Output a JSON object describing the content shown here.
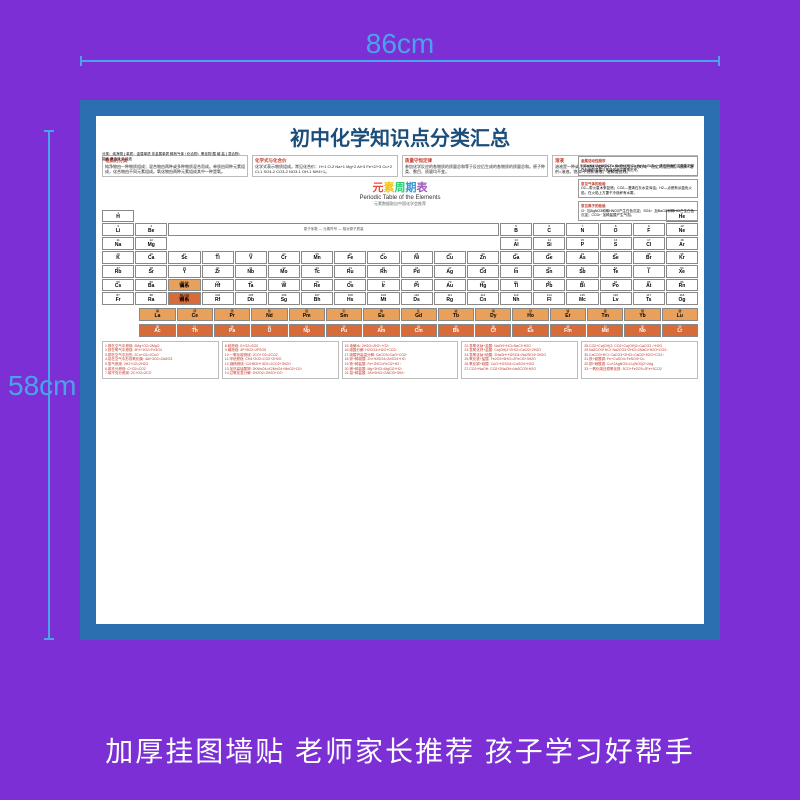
{
  "background_color": "#7b2fd4",
  "poster_border_color": "#2b6fb0",
  "dim_color": "#4aa3e8",
  "dims": {
    "width_label": "86cm",
    "height_label": "58cm"
  },
  "poster_title": "初中化学知识点分类汇总",
  "left_branch": "分类：纯净物 { 单质：金属单质 非金属单质 稀有气体 / 化合物：氧化物 酸 碱 盐 } 混合物：溶液 悬浊液 乳浊液",
  "info_cols": [
    {
      "t": "物质的分类",
      "b": "纯净物由一种物质组成；混合物由两种或多种物质混合而成。单质由同种元素组成，化合物由不同元素组成。氧化物由两种元素组成其中一种是氧。"
    },
    {
      "t": "化学式与化合价",
      "b": "化学式表示物质组成。常见化合价：H+1 O-2 Na+1 Mg+2 Al+3 Fe+2/+3 Cu+2 Cl-1 SO4-2 CO3-2 NO3-1 OH-1 NH4+1。"
    },
    {
      "t": "质量守恒定律",
      "b": "参加化学反应的各物质的质量总和等于反应后生成的各物质的质量总和。原子种类、数目、质量均不变。"
    },
    {
      "t": "溶液",
      "b": "溶液是一种或几种物质分散到另一种物质里形成的均一稳定的混合物。溶质+溶剂=溶液。饱和/不饱和溶液。溶解度曲线。"
    }
  ],
  "side_notes": [
    {
      "t": "金属活动性顺序",
      "b": "K Ca Na Mg Al Zn Fe Sn Pb (H) Cu Hg Ag Pt Au。排在前面的金属能把排在后面的金属从其盐溶液中置换出来。"
    },
    {
      "t": "常见气体的检验",
      "b": "O2—带火星木条复燃；CO2—澄清石灰水变浑浊；H2—点燃有淡蓝色火焰，在火焰上方罩干冷烧杯有水雾。"
    },
    {
      "t": "常见离子的检验",
      "b": "Cl⁻ 加AgNO3和稀HNO3产生白色沉淀；SO4²⁻ 加BaCl2和稀HCl产生白色沉淀；CO3²⁻ 加稀盐酸产生气泡。"
    }
  ],
  "pt_header": {
    "cn": [
      "元",
      "素",
      "周",
      "期",
      "表"
    ],
    "en": "Periodic Table of the Elements",
    "sub": "元素数据取自中国化学会推荐"
  },
  "pt_rows": [
    [
      {
        "n": 1,
        "s": "H"
      },
      null,
      null,
      null,
      null,
      null,
      null,
      null,
      null,
      null,
      null,
      null,
      null,
      null,
      null,
      null,
      null,
      {
        "n": 2,
        "s": "He"
      }
    ],
    [
      {
        "n": 3,
        "s": "Li"
      },
      {
        "n": 4,
        "s": "Be"
      },
      "legend",
      null,
      null,
      null,
      null,
      null,
      null,
      null,
      null,
      null,
      {
        "n": 5,
        "s": "B"
      },
      {
        "n": 6,
        "s": "C"
      },
      {
        "n": 7,
        "s": "N"
      },
      {
        "n": 8,
        "s": "O"
      },
      {
        "n": 9,
        "s": "F"
      },
      {
        "n": 10,
        "s": "Ne"
      }
    ],
    [
      {
        "n": 11,
        "s": "Na"
      },
      {
        "n": 12,
        "s": "Mg"
      },
      null,
      null,
      null,
      null,
      null,
      null,
      null,
      null,
      null,
      null,
      {
        "n": 13,
        "s": "Al"
      },
      {
        "n": 14,
        "s": "Si"
      },
      {
        "n": 15,
        "s": "P"
      },
      {
        "n": 16,
        "s": "S"
      },
      {
        "n": 17,
        "s": "Cl"
      },
      {
        "n": 18,
        "s": "Ar"
      }
    ],
    [
      {
        "n": 19,
        "s": "K"
      },
      {
        "n": 20,
        "s": "Ca"
      },
      {
        "n": 21,
        "s": "Sc"
      },
      {
        "n": 22,
        "s": "Ti"
      },
      {
        "n": 23,
        "s": "V"
      },
      {
        "n": 24,
        "s": "Cr"
      },
      {
        "n": 25,
        "s": "Mn"
      },
      {
        "n": 26,
        "s": "Fe"
      },
      {
        "n": 27,
        "s": "Co"
      },
      {
        "n": 28,
        "s": "Ni"
      },
      {
        "n": 29,
        "s": "Cu"
      },
      {
        "n": 30,
        "s": "Zn"
      },
      {
        "n": 31,
        "s": "Ga"
      },
      {
        "n": 32,
        "s": "Ge"
      },
      {
        "n": 33,
        "s": "As"
      },
      {
        "n": 34,
        "s": "Se"
      },
      {
        "n": 35,
        "s": "Br"
      },
      {
        "n": 36,
        "s": "Kr"
      }
    ],
    [
      {
        "n": 37,
        "s": "Rb"
      },
      {
        "n": 38,
        "s": "Sr"
      },
      {
        "n": 39,
        "s": "Y"
      },
      {
        "n": 40,
        "s": "Zr"
      },
      {
        "n": 41,
        "s": "Nb"
      },
      {
        "n": 42,
        "s": "Mo"
      },
      {
        "n": 43,
        "s": "Tc"
      },
      {
        "n": 44,
        "s": "Ru"
      },
      {
        "n": 45,
        "s": "Rh"
      },
      {
        "n": 46,
        "s": "Pd"
      },
      {
        "n": 47,
        "s": "Ag"
      },
      {
        "n": 48,
        "s": "Cd"
      },
      {
        "n": 49,
        "s": "In"
      },
      {
        "n": 50,
        "s": "Sn"
      },
      {
        "n": 51,
        "s": "Sb"
      },
      {
        "n": 52,
        "s": "Te"
      },
      {
        "n": 53,
        "s": "I"
      },
      {
        "n": 54,
        "s": "Xe"
      }
    ],
    [
      {
        "n": 55,
        "s": "Cs"
      },
      {
        "n": 56,
        "s": "Ba"
      },
      {
        "n": "57-71",
        "s": "镧系",
        "c": "#e8a05a"
      },
      {
        "n": 72,
        "s": "Hf"
      },
      {
        "n": 73,
        "s": "Ta"
      },
      {
        "n": 74,
        "s": "W"
      },
      {
        "n": 75,
        "s": "Re"
      },
      {
        "n": 76,
        "s": "Os"
      },
      {
        "n": 77,
        "s": "Ir"
      },
      {
        "n": 78,
        "s": "Pt"
      },
      {
        "n": 79,
        "s": "Au"
      },
      {
        "n": 80,
        "s": "Hg"
      },
      {
        "n": 81,
        "s": "Tl"
      },
      {
        "n": 82,
        "s": "Pb"
      },
      {
        "n": 83,
        "s": "Bi"
      },
      {
        "n": 84,
        "s": "Po"
      },
      {
        "n": 85,
        "s": "At"
      },
      {
        "n": 86,
        "s": "Rn"
      }
    ],
    [
      {
        "n": 87,
        "s": "Fr"
      },
      {
        "n": 88,
        "s": "Ra"
      },
      {
        "n": "89-103",
        "s": "锕系",
        "c": "#d86b3a"
      },
      {
        "n": 104,
        "s": "Rf"
      },
      {
        "n": 105,
        "s": "Db"
      },
      {
        "n": 106,
        "s": "Sg"
      },
      {
        "n": 107,
        "s": "Bh"
      },
      {
        "n": 108,
        "s": "Hs"
      },
      {
        "n": 109,
        "s": "Mt"
      },
      {
        "n": 110,
        "s": "Ds"
      },
      {
        "n": 111,
        "s": "Rg"
      },
      {
        "n": 112,
        "s": "Cn"
      },
      {
        "n": 113,
        "s": "Nh"
      },
      {
        "n": 114,
        "s": "Fl"
      },
      {
        "n": 115,
        "s": "Mc"
      },
      {
        "n": 116,
        "s": "Lv"
      },
      {
        "n": 117,
        "s": "Ts"
      },
      {
        "n": 118,
        "s": "Og"
      }
    ]
  ],
  "lan": [
    {
      "n": "镧",
      "s": "La"
    },
    {
      "n": "铈",
      "s": "Ce"
    },
    {
      "n": "镨",
      "s": "Pr"
    },
    {
      "n": "钕",
      "s": "Nd"
    },
    {
      "n": "钷",
      "s": "Pm"
    },
    {
      "n": "钐",
      "s": "Sm"
    },
    {
      "n": "铕",
      "s": "Eu"
    },
    {
      "n": "钆",
      "s": "Gd"
    },
    {
      "n": "铽",
      "s": "Tb"
    },
    {
      "n": "镝",
      "s": "Dy"
    },
    {
      "n": "钬",
      "s": "Ho"
    },
    {
      "n": "铒",
      "s": "Er"
    },
    {
      "n": "铥",
      "s": "Tm"
    },
    {
      "n": "镱",
      "s": "Yb"
    },
    {
      "n": "镥",
      "s": "Lu"
    }
  ],
  "act": [
    {
      "n": "锕",
      "s": "Ac"
    },
    {
      "n": "钍",
      "s": "Th"
    },
    {
      "n": "镤",
      "s": "Pa"
    },
    {
      "n": "铀",
      "s": "U"
    },
    {
      "n": "镎",
      "s": "Np"
    },
    {
      "n": "钚",
      "s": "Pu"
    },
    {
      "n": "镅",
      "s": "Am"
    },
    {
      "n": "锔",
      "s": "Cm"
    },
    {
      "n": "锫",
      "s": "Bk"
    },
    {
      "n": "锎",
      "s": "Cf"
    },
    {
      "n": "锿",
      "s": "Es"
    },
    {
      "n": "镄",
      "s": "Fm"
    },
    {
      "n": "钔",
      "s": "Md"
    },
    {
      "n": "锘",
      "s": "No"
    },
    {
      "n": "铹",
      "s": "Lr"
    }
  ],
  "legend_text": "原子序数 — 元素符号 — 相对原子质量",
  "eq_cols": [
    [
      "1.镁在空气中燃烧: 2Mg+O2=2MgO",
      "2.铁在氧气中燃烧: 3Fe+2O2=Fe3O4",
      "3.铜在空气中加热: 2Cu+O2=2CuO",
      "4.铝在空气中形成氧化膜: 4Al+3O2=2Al2O3",
      "5.氢气燃烧: 2H2+O2=2H2O",
      "6.碳充分燃烧: C+O2=CO2",
      "7.碳不充分燃烧: 2C+O2=2CO"
    ],
    [
      "8.硫燃烧: S+O2=SO2",
      "9.磷燃烧: 4P+5O2=2P2O5",
      "10.一氧化碳燃烧: 2CO+O2=2CO2",
      "11.甲烷燃烧: CH4+2O2=CO2+2H2O",
      "12.酒精燃烧: C2H5OH+3O2=2CO2+3H2O",
      "13.加热高锰酸钾: 2KMnO4=K2MnO4+MnO2+O2↑",
      "14.过氧化氢分解: 2H2O2=2H2O+O2↑"
    ],
    [
      "15.电解水: 2H2O=2H2↑+O2↑",
      "16.碳酸分解: H2CO3=H2O+CO2↑",
      "17.碳酸钙高温分解: CaCO3=CaO+CO2↑",
      "18.锌+稀硫酸: Zn+H2SO4=ZnSO4+H2↑",
      "19.铁+稀盐酸: Fe+2HCl=FeCl2+H2↑",
      "20.镁+稀盐酸: Mg+2HCl=MgCl2+H2↑",
      "21.铝+稀盐酸: 2Al+6HCl=2AlCl3+3H2↑"
    ],
    [
      "22.氢氧化钠+盐酸: NaOH+HCl=NaCl+H2O",
      "23.氢氧化钙+盐酸: Ca(OH)2+2HCl=CaCl2+2H2O",
      "24.氢氧化钠+硫酸: 2NaOH+H2SO4=Na2SO4+2H2O",
      "25.氧化铁+盐酸: Fe2O3+6HCl=2FeCl3+3H2O",
      "26.氧化铜+硫酸: CuO+H2SO4=CuSO4+H2O",
      "27.CO2+NaOH: CO2+2NaOH=Na2CO3+H2O"
    ],
    [
      "28.CO2+Ca(OH)2: CO2+Ca(OH)2=CaCO3↓+H2O",
      "29.Na2CO3+HCl: Na2CO3+2HCl=2NaCl+H2O+CO2↑",
      "30.CaCO3+HCl: CaCO3+2HCl=CaCl2+H2O+CO2↑",
      "31.铁+硫酸铜: Fe+CuSO4=FeSO4+Cu",
      "32.铜+硝酸银: Cu+2AgNO3=Cu(NO3)2+2Ag",
      "33.一氧化碳还原氧化铁: 3CO+Fe2O3=2Fe+3CO2"
    ]
  ],
  "caption": "加厚挂图墙贴  老师家长推荐 孩子学习好帮手"
}
